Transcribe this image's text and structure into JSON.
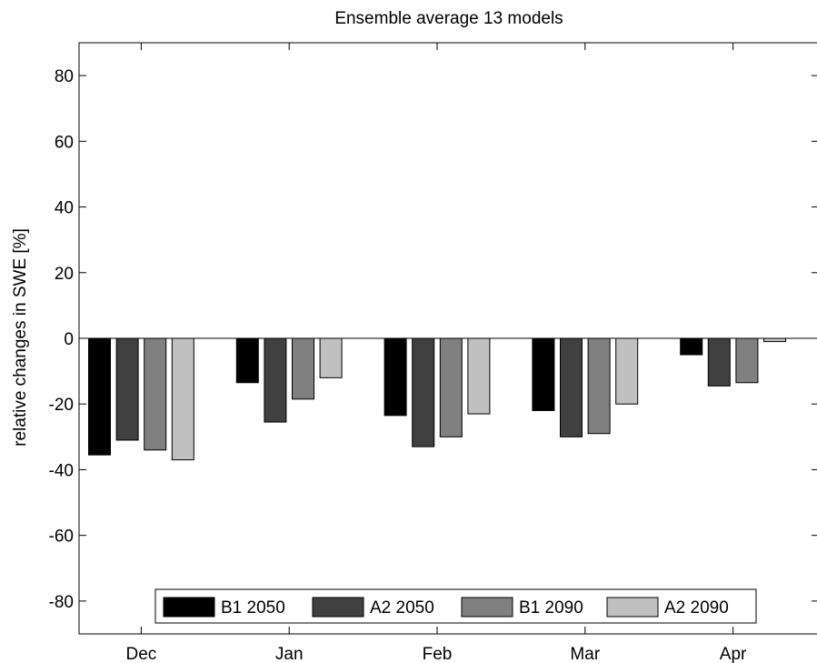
{
  "chart_data": {
    "type": "bar",
    "title": "Ensemble average 13 models",
    "xlabel": "",
    "ylabel": "relative changes in SWE [%]",
    "ylim": [
      -90,
      90
    ],
    "yticks": [
      -80,
      -60,
      -40,
      -20,
      0,
      20,
      40,
      60,
      80
    ],
    "categories": [
      "Dec",
      "Jan",
      "Feb",
      "Mar",
      "Apr"
    ],
    "series": [
      {
        "name": "B1 2050",
        "color": "#000000",
        "values": [
          -35.5,
          -13.5,
          -23.5,
          -22.0,
          -5.0
        ]
      },
      {
        "name": "A2 2050",
        "color": "#404040",
        "values": [
          -31.0,
          -25.5,
          -33.0,
          -30.0,
          -14.5
        ]
      },
      {
        "name": "B1 2090",
        "color": "#808080",
        "values": [
          -34.0,
          -18.5,
          -30.0,
          -29.0,
          -13.5
        ]
      },
      {
        "name": "A2 2090",
        "color": "#c0c0c0",
        "values": [
          -37.0,
          -12.0,
          -23.0,
          -20.0,
          -1.0
        ]
      }
    ],
    "grid": false,
    "legend_position": "bottom-center"
  }
}
